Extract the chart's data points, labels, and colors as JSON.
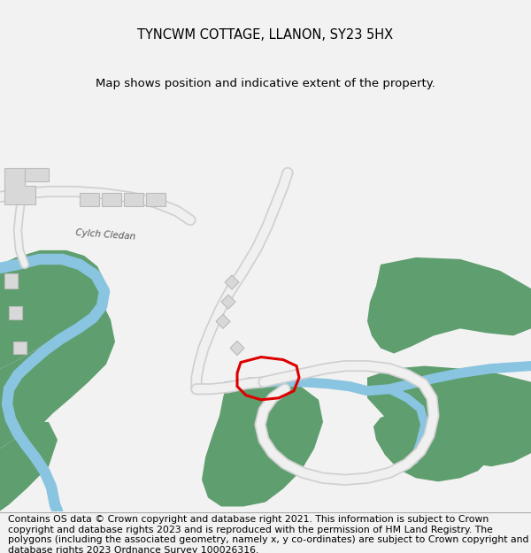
{
  "title": "TYNCWM COTTAGE, LLANON, SY23 5HX",
  "subtitle": "Map shows position and indicative extent of the property.",
  "copyright_text": "Contains OS data © Crown copyright and database right 2021. This information is subject to Crown copyright and database rights 2023 and is reproduced with the permission of HM Land Registry. The polygons (including the associated geometry, namely x, y co-ordinates) are subject to Crown copyright and database rights 2023 Ordnance Survey 100026316.",
  "bg_color": "#f2f2f2",
  "map_bg": "#ffffff",
  "green_color": "#5f9e6e",
  "blue_color": "#89c4e0",
  "road_color": "#f0f0f0",
  "road_outline": "#d0d0d0",
  "building_color": "#d8d8d8",
  "building_outline": "#bbbbbb",
  "red_outline": "#dd0000",
  "road_label": "Cylch Cledan",
  "title_fontsize": 10.5,
  "subtitle_fontsize": 9.5,
  "copyright_fontsize": 7.8
}
